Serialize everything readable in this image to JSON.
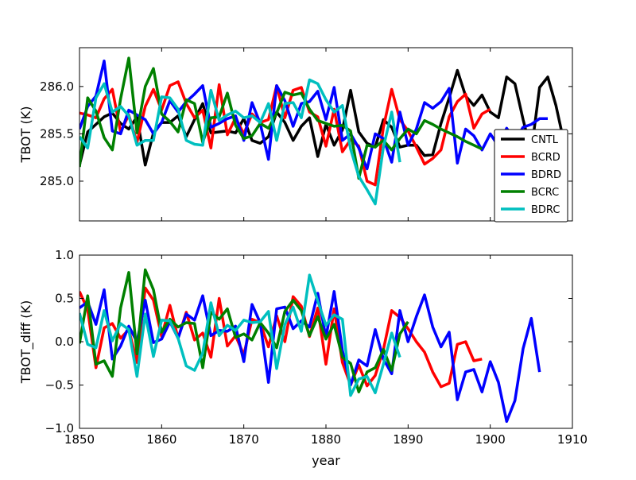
{
  "chart_data": [
    {
      "type": "line",
      "panel": "top",
      "ylabel": "TBOT (K)",
      "xlabel": "",
      "xlim": [
        1850,
        1910
      ],
      "ylim": [
        284.58,
        286.41
      ],
      "xticks": [
        1850,
        1860,
        1870,
        1880,
        1890,
        1900,
        1910
      ],
      "yticks": [
        285.0,
        285.5,
        286.0
      ],
      "ytick_labels": [
        "285.0",
        "285.5",
        "286.0"
      ],
      "show_xtick_labels": false,
      "legend": "right",
      "series": [
        {
          "name": "CNTL",
          "color": "#000000",
          "x": [
            1850,
            1851,
            1852,
            1853,
            1854,
            1855,
            1856,
            1857,
            1858,
            1859,
            1860,
            1861,
            1862,
            1863,
            1864,
            1865,
            1866,
            1867,
            1868,
            1869,
            1870,
            1871,
            1872,
            1873,
            1874,
            1875,
            1876,
            1877,
            1878,
            1879,
            1880,
            1881,
            1882,
            1883,
            1884,
            1885,
            1886,
            1887,
            1888,
            1889,
            1890,
            1891,
            1892,
            1893,
            1894,
            1895,
            1896,
            1897,
            1898,
            1899,
            1900,
            1901,
            1902,
            1903,
            1904,
            1905,
            1906,
            1907,
            1908,
            1909
          ],
          "y": [
            285.17,
            285.52,
            285.6,
            285.68,
            285.72,
            285.61,
            285.55,
            285.68,
            285.17,
            285.51,
            285.62,
            285.62,
            285.69,
            285.47,
            285.65,
            285.82,
            285.51,
            285.52,
            285.53,
            285.51,
            285.66,
            285.43,
            285.4,
            285.47,
            285.73,
            285.62,
            285.43,
            285.58,
            285.67,
            285.26,
            285.6,
            285.38,
            285.54,
            285.96,
            285.52,
            285.4,
            285.36,
            285.65,
            285.57,
            285.36,
            285.38,
            285.38,
            285.27,
            285.28,
            285.61,
            285.88,
            286.17,
            285.9,
            285.8,
            285.91,
            285.73,
            285.67,
            286.1,
            286.03,
            285.65,
            285.31,
            285.99,
            286.1,
            285.8,
            285.4
          ]
        },
        {
          "name": "BCRD",
          "color": "#ff0000",
          "x": [
            1850,
            1851,
            1852,
            1853,
            1854,
            1855,
            1856,
            1857,
            1858,
            1859,
            1860,
            1861,
            1862,
            1863,
            1864,
            1865,
            1866,
            1867,
            1868,
            1869,
            1870,
            1871,
            1872,
            1873,
            1874,
            1875,
            1876,
            1877,
            1878,
            1879,
            1880,
            1881,
            1882,
            1883,
            1884,
            1885,
            1886,
            1887,
            1888,
            1889,
            1890,
            1891,
            1892,
            1893,
            1894,
            1895,
            1896,
            1897,
            1898,
            1899,
            1900
          ],
          "y": [
            285.72,
            285.7,
            285.67,
            285.87,
            285.97,
            285.52,
            285.7,
            285.41,
            285.79,
            285.97,
            285.75,
            286.01,
            286.05,
            285.82,
            285.67,
            285.75,
            285.35,
            286.02,
            285.49,
            285.67,
            285.5,
            285.71,
            285.62,
            285.65,
            286.01,
            285.67,
            285.96,
            285.99,
            285.73,
            285.68,
            285.37,
            285.76,
            285.31,
            285.44,
            285.37,
            285.0,
            284.96,
            285.57,
            285.97,
            285.65,
            285.53,
            285.36,
            285.18,
            285.24,
            285.33,
            285.68,
            285.84,
            285.92,
            285.56,
            285.71,
            285.76
          ]
        },
        {
          "name": "BDRD",
          "color": "#0000ff",
          "x": [
            1850,
            1851,
            1852,
            1853,
            1854,
            1855,
            1856,
            1857,
            1858,
            1859,
            1860,
            1861,
            1862,
            1863,
            1864,
            1865,
            1866,
            1867,
            1868,
            1869,
            1870,
            1871,
            1872,
            1873,
            1874,
            1875,
            1876,
            1877,
            1878,
            1879,
            1880,
            1881,
            1882,
            1883,
            1884,
            1885,
            1886,
            1887,
            1888,
            1889,
            1890,
            1891,
            1892,
            1893,
            1894,
            1895,
            1896,
            1897,
            1898,
            1899,
            1900,
            1901,
            1902,
            1903,
            1904,
            1905,
            1906,
            1907
          ],
          "y": [
            285.55,
            285.79,
            285.9,
            286.27,
            285.53,
            285.5,
            285.75,
            285.7,
            285.65,
            285.5,
            285.62,
            285.85,
            285.73,
            285.84,
            285.92,
            286.01,
            285.57,
            285.61,
            285.66,
            285.69,
            285.43,
            285.83,
            285.61,
            285.23,
            286.01,
            285.85,
            285.58,
            285.82,
            285.84,
            285.95,
            285.65,
            285.99,
            285.43,
            285.5,
            285.35,
            285.13,
            285.5,
            285.45,
            285.2,
            285.73,
            285.38,
            285.55,
            285.83,
            285.77,
            285.84,
            285.98,
            285.19,
            285.55,
            285.48,
            285.33,
            285.5,
            285.37,
            285.56,
            285.43,
            285.57,
            285.6,
            285.66,
            285.66
          ]
        },
        {
          "name": "BCRC",
          "color": "#008000",
          "x": [
            1850,
            1851,
            1852,
            1853,
            1854,
            1855,
            1856,
            1857,
            1858,
            1859,
            1860,
            1861,
            1862,
            1863,
            1864,
            1865,
            1866,
            1867,
            1868,
            1869,
            1870,
            1871,
            1872,
            1873,
            1874,
            1875,
            1876,
            1877,
            1878,
            1879,
            1880,
            1881,
            1882,
            1883,
            1884,
            1885,
            1886,
            1887,
            1888,
            1889,
            1890,
            1891,
            1892,
            1893,
            1894,
            1895,
            1896,
            1897,
            1898,
            1899
          ],
          "y": [
            285.15,
            285.88,
            285.74,
            285.46,
            285.33,
            285.87,
            286.3,
            285.51,
            286.0,
            286.19,
            285.71,
            285.63,
            285.52,
            285.86,
            285.82,
            285.41,
            285.67,
            285.68,
            285.93,
            285.59,
            285.45,
            285.48,
            285.61,
            285.56,
            285.72,
            285.94,
            285.91,
            285.93,
            285.76,
            285.64,
            285.61,
            285.58,
            285.59,
            285.53,
            285.03,
            285.38,
            285.36,
            285.43,
            285.33,
            285.45,
            285.55,
            285.5,
            285.64,
            285.6,
            285.55,
            285.51,
            285.47,
            285.42,
            285.38,
            285.34
          ]
        },
        {
          "name": "BDRC",
          "color": "#00bfbf",
          "x": [
            1850,
            1851,
            1852,
            1853,
            1854,
            1855,
            1856,
            1857,
            1858,
            1859,
            1860,
            1861,
            1862,
            1863,
            1864,
            1865,
            1866,
            1867,
            1868,
            1869,
            1870,
            1871,
            1872,
            1873,
            1874,
            1875,
            1876,
            1877,
            1878,
            1879,
            1880,
            1881,
            1882,
            1883,
            1884,
            1885,
            1886,
            1887,
            1888,
            1889
          ],
          "y": [
            285.47,
            285.35,
            285.88,
            286.03,
            285.73,
            285.79,
            285.69,
            285.38,
            285.43,
            285.43,
            285.89,
            285.88,
            285.76,
            285.43,
            285.39,
            285.38,
            285.96,
            285.64,
            285.7,
            285.74,
            285.67,
            285.69,
            285.62,
            285.82,
            285.43,
            285.82,
            285.83,
            285.67,
            286.07,
            286.03,
            285.86,
            285.73,
            285.8,
            285.34,
            285.05,
            284.91,
            284.76,
            285.36,
            285.73,
            285.2
          ]
        }
      ]
    },
    {
      "type": "line",
      "panel": "bottom",
      "ylabel": "TBOT_diff (K)",
      "xlabel": "year",
      "xlim": [
        1850,
        1910
      ],
      "ylim": [
        -1.0,
        1.0
      ],
      "xticks": [
        1850,
        1860,
        1870,
        1880,
        1890,
        1900,
        1910
      ],
      "xtick_labels": [
        "1850",
        "1860",
        "1870",
        "1880",
        "1890",
        "1900",
        "1910"
      ],
      "yticks": [
        -1.0,
        -0.5,
        0.0,
        0.5,
        1.0
      ],
      "ytick_labels": [
        "−1.0",
        "−0.5",
        "0.0",
        "0.5",
        "1.0"
      ],
      "show_xtick_labels": true,
      "series": [
        {
          "name": "BCRD",
          "color": "#ff0000",
          "x": [
            1850,
            1851,
            1852,
            1853,
            1854,
            1855,
            1856,
            1857,
            1858,
            1859,
            1860,
            1861,
            1862,
            1863,
            1864,
            1865,
            1866,
            1867,
            1868,
            1869,
            1870,
            1871,
            1872,
            1873,
            1874,
            1875,
            1876,
            1877,
            1878,
            1879,
            1880,
            1881,
            1882,
            1883,
            1884,
            1885,
            1886,
            1887,
            1888,
            1889,
            1890,
            1891,
            1892,
            1893,
            1894,
            1895,
            1896,
            1897,
            1898,
            1899
          ],
          "y": [
            0.58,
            0.37,
            -0.3,
            0.16,
            0.21,
            0.04,
            0.14,
            -0.24,
            0.62,
            0.48,
            0.06,
            0.42,
            0.04,
            0.34,
            0.02,
            0.1,
            -0.18,
            0.5,
            -0.05,
            0.07,
            -0.15,
            0.26,
            0.22,
            -0.06,
            0.3,
            0.0,
            0.52,
            0.41,
            0.06,
            0.39,
            -0.26,
            0.38,
            -0.24,
            -0.5,
            -0.27,
            -0.51,
            -0.39,
            -0.09,
            0.36,
            0.28,
            0.15,
            0.0,
            -0.12,
            -0.35,
            -0.52,
            -0.48,
            -0.03,
            0.0,
            -0.22,
            -0.2
          ]
        },
        {
          "name": "BDRD",
          "color": "#0000ff",
          "x": [
            1850,
            1851,
            1852,
            1853,
            1854,
            1855,
            1856,
            1857,
            1858,
            1859,
            1860,
            1861,
            1862,
            1863,
            1864,
            1865,
            1866,
            1867,
            1868,
            1869,
            1870,
            1871,
            1872,
            1873,
            1874,
            1875,
            1876,
            1877,
            1878,
            1879,
            1880,
            1881,
            1882,
            1883,
            1884,
            1885,
            1886,
            1887,
            1888,
            1889,
            1890,
            1891,
            1892,
            1893,
            1894,
            1895,
            1896,
            1897,
            1898,
            1899,
            1900,
            1901,
            1902,
            1903,
            1904,
            1905,
            1906
          ],
          "y": [
            0.39,
            0.46,
            0.2,
            0.6,
            -0.2,
            -0.05,
            0.18,
            0.0,
            0.48,
            -0.01,
            0.03,
            0.23,
            0.04,
            0.32,
            0.25,
            0.53,
            0.07,
            0.13,
            0.12,
            0.18,
            -0.23,
            0.43,
            0.22,
            -0.47,
            0.38,
            0.4,
            0.15,
            0.24,
            0.17,
            0.56,
            0.05,
            0.58,
            -0.1,
            -0.5,
            -0.21,
            -0.28,
            0.14,
            -0.2,
            -0.37,
            0.36,
            0.0,
            0.29,
            0.54,
            0.17,
            -0.06,
            0.11,
            -0.67,
            -0.35,
            -0.32,
            -0.58,
            -0.23,
            -0.47,
            -0.92,
            -0.68,
            -0.08,
            0.27,
            -0.35
          ]
        },
        {
          "name": "BCRC",
          "color": "#008000",
          "x": [
            1850,
            1851,
            1852,
            1853,
            1854,
            1855,
            1856,
            1857,
            1858,
            1859,
            1860,
            1861,
            1862,
            1863,
            1864,
            1865,
            1866,
            1867,
            1868,
            1869,
            1870,
            1871,
            1872,
            1873,
            1874,
            1875,
            1876,
            1877,
            1878,
            1879,
            1880,
            1881,
            1882,
            1883,
            1884,
            1885,
            1886,
            1887,
            1888,
            1889,
            1890
          ],
          "y": [
            -0.02,
            0.53,
            -0.26,
            -0.22,
            -0.4,
            0.39,
            0.8,
            -0.14,
            0.83,
            0.6,
            0.11,
            0.26,
            0.17,
            0.22,
            0.21,
            -0.3,
            0.34,
            0.26,
            0.38,
            0.05,
            0.09,
            0.02,
            0.22,
            0.1,
            -0.07,
            0.35,
            0.48,
            0.36,
            0.07,
            0.29,
            0.03,
            0.2,
            -0.18,
            -0.25,
            -0.58,
            -0.35,
            -0.3,
            -0.09,
            -0.33,
            0.09,
            0.23
          ]
        },
        {
          "name": "BDRC",
          "color": "#00bfbf",
          "x": [
            1850,
            1851,
            1852,
            1853,
            1854,
            1855,
            1856,
            1857,
            1858,
            1859,
            1860,
            1861,
            1862,
            1863,
            1864,
            1865,
            1866,
            1867,
            1868,
            1869,
            1870,
            1871,
            1872,
            1873,
            1874,
            1875,
            1876,
            1877,
            1878,
            1879,
            1880,
            1881,
            1882,
            1883,
            1884,
            1885,
            1886,
            1887,
            1888,
            1889
          ],
          "y": [
            0.33,
            -0.03,
            -0.07,
            0.36,
            0.01,
            0.21,
            0.14,
            -0.4,
            0.32,
            -0.17,
            0.25,
            0.24,
            0.04,
            -0.28,
            -0.33,
            -0.13,
            0.45,
            0.07,
            0.19,
            0.13,
            0.25,
            0.22,
            0.23,
            0.35,
            -0.31,
            0.2,
            0.4,
            0.12,
            0.77,
            0.47,
            0.19,
            0.31,
            0.26,
            -0.62,
            -0.43,
            -0.4,
            -0.59,
            -0.26,
            0.1,
            -0.18
          ]
        }
      ]
    }
  ]
}
